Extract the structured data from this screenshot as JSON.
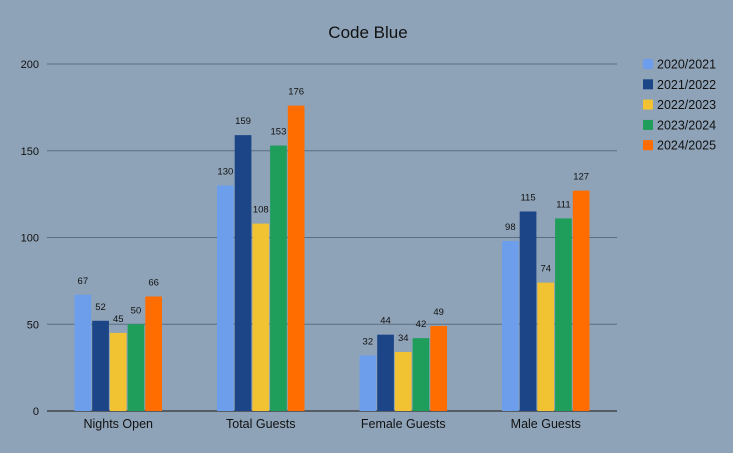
{
  "chart_data": {
    "type": "bar",
    "title": "Code Blue",
    "xlabel": "",
    "ylabel": "",
    "ylim": [
      0,
      200
    ],
    "yticks": [
      0,
      50,
      100,
      150,
      200
    ],
    "grid": true,
    "legend_position": "right",
    "categories": [
      "Nights Open",
      "Total Guests",
      "Female Guests",
      "Male Guests"
    ],
    "series": [
      {
        "name": "2020/2021",
        "color": "#6d9eeb",
        "values": [
          67,
          130,
          32,
          98
        ]
      },
      {
        "name": "2021/2022",
        "color": "#1c4587",
        "values": [
          52,
          159,
          44,
          115
        ]
      },
      {
        "name": "2022/2023",
        "color": "#f1c232",
        "values": [
          45,
          108,
          34,
          74
        ]
      },
      {
        "name": "2023/2024",
        "color": "#1e9e5a",
        "values": [
          50,
          153,
          42,
          111
        ]
      },
      {
        "name": "2024/2025",
        "color": "#ff6d01",
        "values": [
          66,
          176,
          49,
          127
        ]
      }
    ]
  }
}
